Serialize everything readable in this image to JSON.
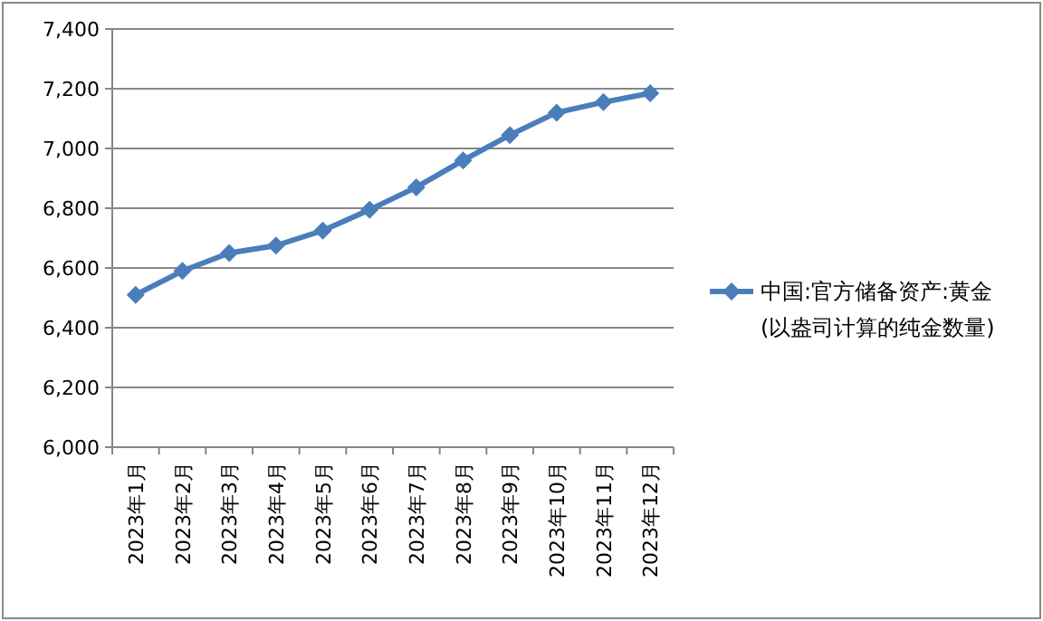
{
  "chart_data": {
    "type": "line",
    "categories": [
      "2023年1月",
      "2023年2月",
      "2023年3月",
      "2023年4月",
      "2023年5月",
      "2023年6月",
      "2023年7月",
      "2023年8月",
      "2023年9月",
      "2023年10月",
      "2023年11月",
      "2023年12月"
    ],
    "series": [
      {
        "name": "中国:官方储备资产:黄金(以盎司计算的纯金数量)",
        "color": "#4a7ebb",
        "values": [
          6510,
          6590,
          6650,
          6675,
          6725,
          6795,
          6870,
          6960,
          7045,
          7120,
          7155,
          7185
        ]
      }
    ],
    "ylim": [
      6000,
      7400
    ],
    "yticks": [
      {
        "value": 6000,
        "label": "6,000"
      },
      {
        "value": 6200,
        "label": "6,200"
      },
      {
        "value": 6400,
        "label": "6,400"
      },
      {
        "value": 6600,
        "label": "6,600"
      },
      {
        "value": 6800,
        "label": "6,800"
      },
      {
        "value": 7000,
        "label": "7,000"
      },
      {
        "value": 7200,
        "label": "7,200"
      },
      {
        "value": 7400,
        "label": "7,400"
      }
    ],
    "grid": "y",
    "legend": "right",
    "marker": "diamond",
    "line_style": "solid"
  }
}
